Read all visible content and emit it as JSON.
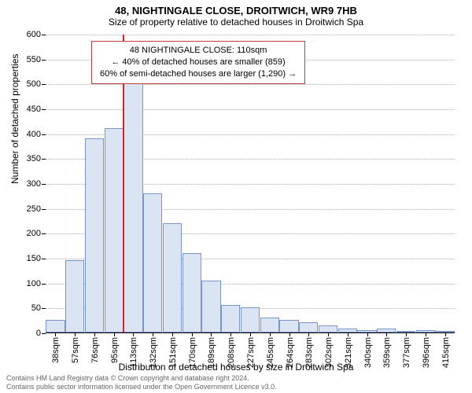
{
  "title_line1": "48, NIGHTINGALE CLOSE, DROITWICH, WR9 7HB",
  "title_line2": "Size of property relative to detached houses in Droitwich Spa",
  "chart": {
    "type": "histogram",
    "y_axis_label": "Number of detached properties",
    "x_axis_label": "Distribution of detached houses by size in Droitwich Spa",
    "ylim": [
      0,
      600
    ],
    "ytick_step": 50,
    "bar_fill": "#dbe4f3",
    "bar_border": "#7a95c8",
    "grid_color": "#b0b0b0",
    "background_color": "#ffffff",
    "label_fontsize": 12,
    "tick_fontsize": 11,
    "categories": [
      "38sqm",
      "57sqm",
      "76sqm",
      "95sqm",
      "113sqm",
      "132sqm",
      "151sqm",
      "170sqm",
      "189sqm",
      "208sqm",
      "227sqm",
      "245sqm",
      "264sqm",
      "283sqm",
      "302sqm",
      "321sqm",
      "340sqm",
      "359sqm",
      "377sqm",
      "396sqm",
      "415sqm"
    ],
    "values": [
      25,
      145,
      390,
      410,
      500,
      280,
      220,
      160,
      105,
      55,
      50,
      30,
      25,
      20,
      15,
      8,
      5,
      8,
      3,
      5,
      3
    ],
    "highlight_index": 4,
    "highlight_color": "#d02828"
  },
  "legend": {
    "border_color": "#c04040",
    "line1": "48 NIGHTINGALE CLOSE: 110sqm",
    "line2": "← 40% of detached houses are smaller (859)",
    "line3": "60% of semi-detached houses are larger (1,290) →"
  },
  "footer": {
    "line1": "Contains HM Land Registry data © Crown copyright and database right 2024.",
    "line2": "Contains public sector information licensed under the Open Government Licence v3.0."
  }
}
